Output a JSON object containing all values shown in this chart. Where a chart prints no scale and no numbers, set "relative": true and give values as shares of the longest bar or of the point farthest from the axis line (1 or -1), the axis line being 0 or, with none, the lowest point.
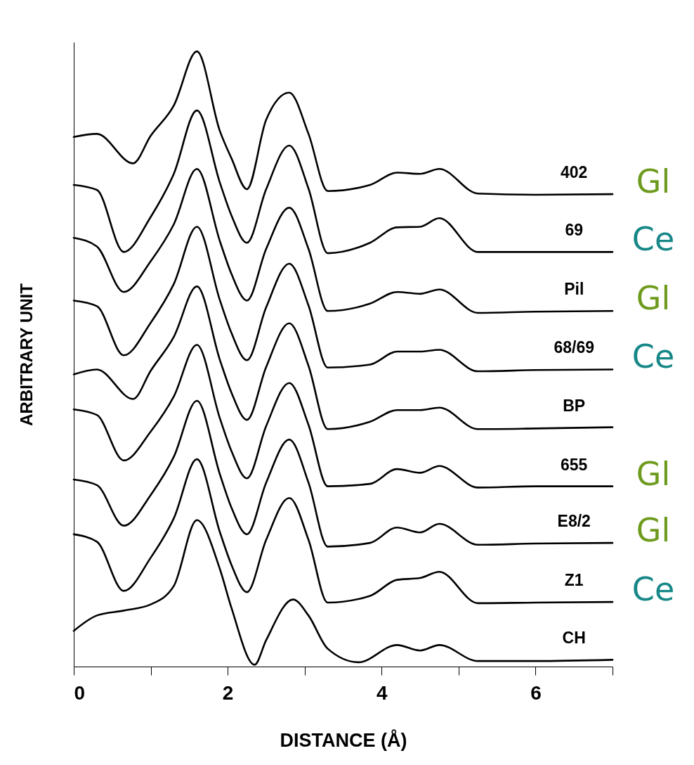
{
  "chart_data": {
    "type": "line",
    "xlabel": "DISTANCE (Å)",
    "ylabel": "ARBITRARY UNIT",
    "relative": true,
    "line_style": "solid",
    "xlim": [
      0,
      7
    ],
    "xticks": [
      0,
      {
        "value": 1,
        "label": null
      },
      2,
      {
        "value": 3,
        "label": null
      },
      4,
      {
        "value": 5,
        "label": null
      },
      6,
      {
        "value": 7,
        "label": null
      }
    ],
    "x": [
      0,
      0.3,
      0.65,
      1.0,
      1.3,
      1.6,
      1.9,
      2.05,
      2.25,
      2.5,
      2.8,
      3.05,
      3.3,
      3.85,
      4.2,
      4.5,
      4.75,
      5.25,
      6,
      7
    ],
    "series": [
      {
        "name": "402",
        "color": "#000000",
        "x": [
          0,
          0.3,
          0.77,
          1.0,
          1.3,
          1.6,
          1.9,
          2.05,
          2.25,
          2.5,
          2.8,
          3.05,
          3.3,
          3.85,
          4.2,
          4.5,
          4.75,
          5.25,
          6,
          7
        ],
        "values": [
          0.861,
          0.866,
          0.818,
          0.863,
          0.912,
          1.0,
          0.87,
          0.826,
          0.776,
          0.889,
          0.933,
          0.866,
          0.773,
          0.783,
          0.803,
          0.801,
          0.809,
          0.769,
          0.767,
          0.768
        ]
      },
      {
        "name": "69",
        "color": "#000000",
        "values": [
          0.783,
          0.775,
          0.674,
          0.731,
          0.801,
          0.904,
          0.786,
          0.733,
          0.689,
          0.776,
          0.847,
          0.777,
          0.672,
          0.689,
          0.714,
          0.715,
          0.729,
          0.674,
          0.674,
          0.674
        ]
      },
      {
        "name": "Pil",
        "color": "#000000",
        "values": [
          0.697,
          0.683,
          0.609,
          0.659,
          0.719,
          0.809,
          0.691,
          0.638,
          0.595,
          0.679,
          0.746,
          0.679,
          0.578,
          0.59,
          0.609,
          0.606,
          0.613,
          0.575,
          0.577,
          0.578
        ]
      },
      {
        "name": "68/69",
        "color": "#000000",
        "values": [
          0.595,
          0.586,
          0.506,
          0.559,
          0.622,
          0.715,
          0.595,
          0.542,
          0.498,
          0.584,
          0.655,
          0.587,
          0.486,
          0.491,
          0.512,
          0.512,
          0.515,
          0.48,
          0.482,
          0.483
        ]
      },
      {
        "name": "BP",
        "color": "#000000",
        "x": [
          0,
          0.3,
          0.77,
          1.0,
          1.3,
          1.6,
          1.9,
          2.05,
          2.25,
          2.5,
          2.8,
          3.05,
          3.3,
          3.85,
          4.2,
          4.5,
          4.75,
          5.25,
          6,
          7
        ],
        "values": [
          0.475,
          0.483,
          0.435,
          0.481,
          0.536,
          0.618,
          0.498,
          0.445,
          0.401,
          0.487,
          0.558,
          0.489,
          0.386,
          0.398,
          0.417,
          0.417,
          0.421,
          0.386,
          0.387,
          0.389
        ]
      },
      {
        "name": "655",
        "color": "#000000",
        "values": [
          0.418,
          0.409,
          0.335,
          0.382,
          0.439,
          0.523,
          0.403,
          0.35,
          0.306,
          0.391,
          0.461,
          0.393,
          0.293,
          0.297,
          0.321,
          0.315,
          0.326,
          0.291,
          0.293,
          0.293
        ]
      },
      {
        "name": "E8/2",
        "color": "#000000",
        "values": [
          0.304,
          0.295,
          0.229,
          0.279,
          0.341,
          0.432,
          0.312,
          0.258,
          0.215,
          0.299,
          0.369,
          0.299,
          0.195,
          0.201,
          0.226,
          0.218,
          0.232,
          0.198,
          0.2,
          0.201
        ]
      },
      {
        "name": "Z1",
        "color": "#000000",
        "values": [
          0.215,
          0.203,
          0.123,
          0.177,
          0.241,
          0.337,
          0.218,
          0.165,
          0.121,
          0.206,
          0.274,
          0.206,
          0.104,
          0.115,
          0.141,
          0.144,
          0.154,
          0.103,
          0.104,
          0.105
        ]
      },
      {
        "name": "CH",
        "color": "#000000",
        "x": [
          0,
          0.3,
          0.65,
          1.0,
          1.3,
          1.6,
          1.9,
          2.05,
          2.35,
          2.5,
          2.85,
          3.05,
          3.3,
          3.7,
          4.2,
          4.5,
          4.75,
          5.25,
          6,
          7
        ],
        "values": [
          0.058,
          0.083,
          0.091,
          0.101,
          0.131,
          0.238,
          0.158,
          0.095,
          0.003,
          0.043,
          0.109,
          0.083,
          0.029,
          0.007,
          0.035,
          0.026,
          0.035,
          0.009,
          0.009,
          0.011
        ]
      }
    ],
    "annotations": [
      "Gl",
      "Ce",
      "Gl",
      "Ce",
      "Gl",
      "Gl",
      "Ce"
    ]
  }
}
